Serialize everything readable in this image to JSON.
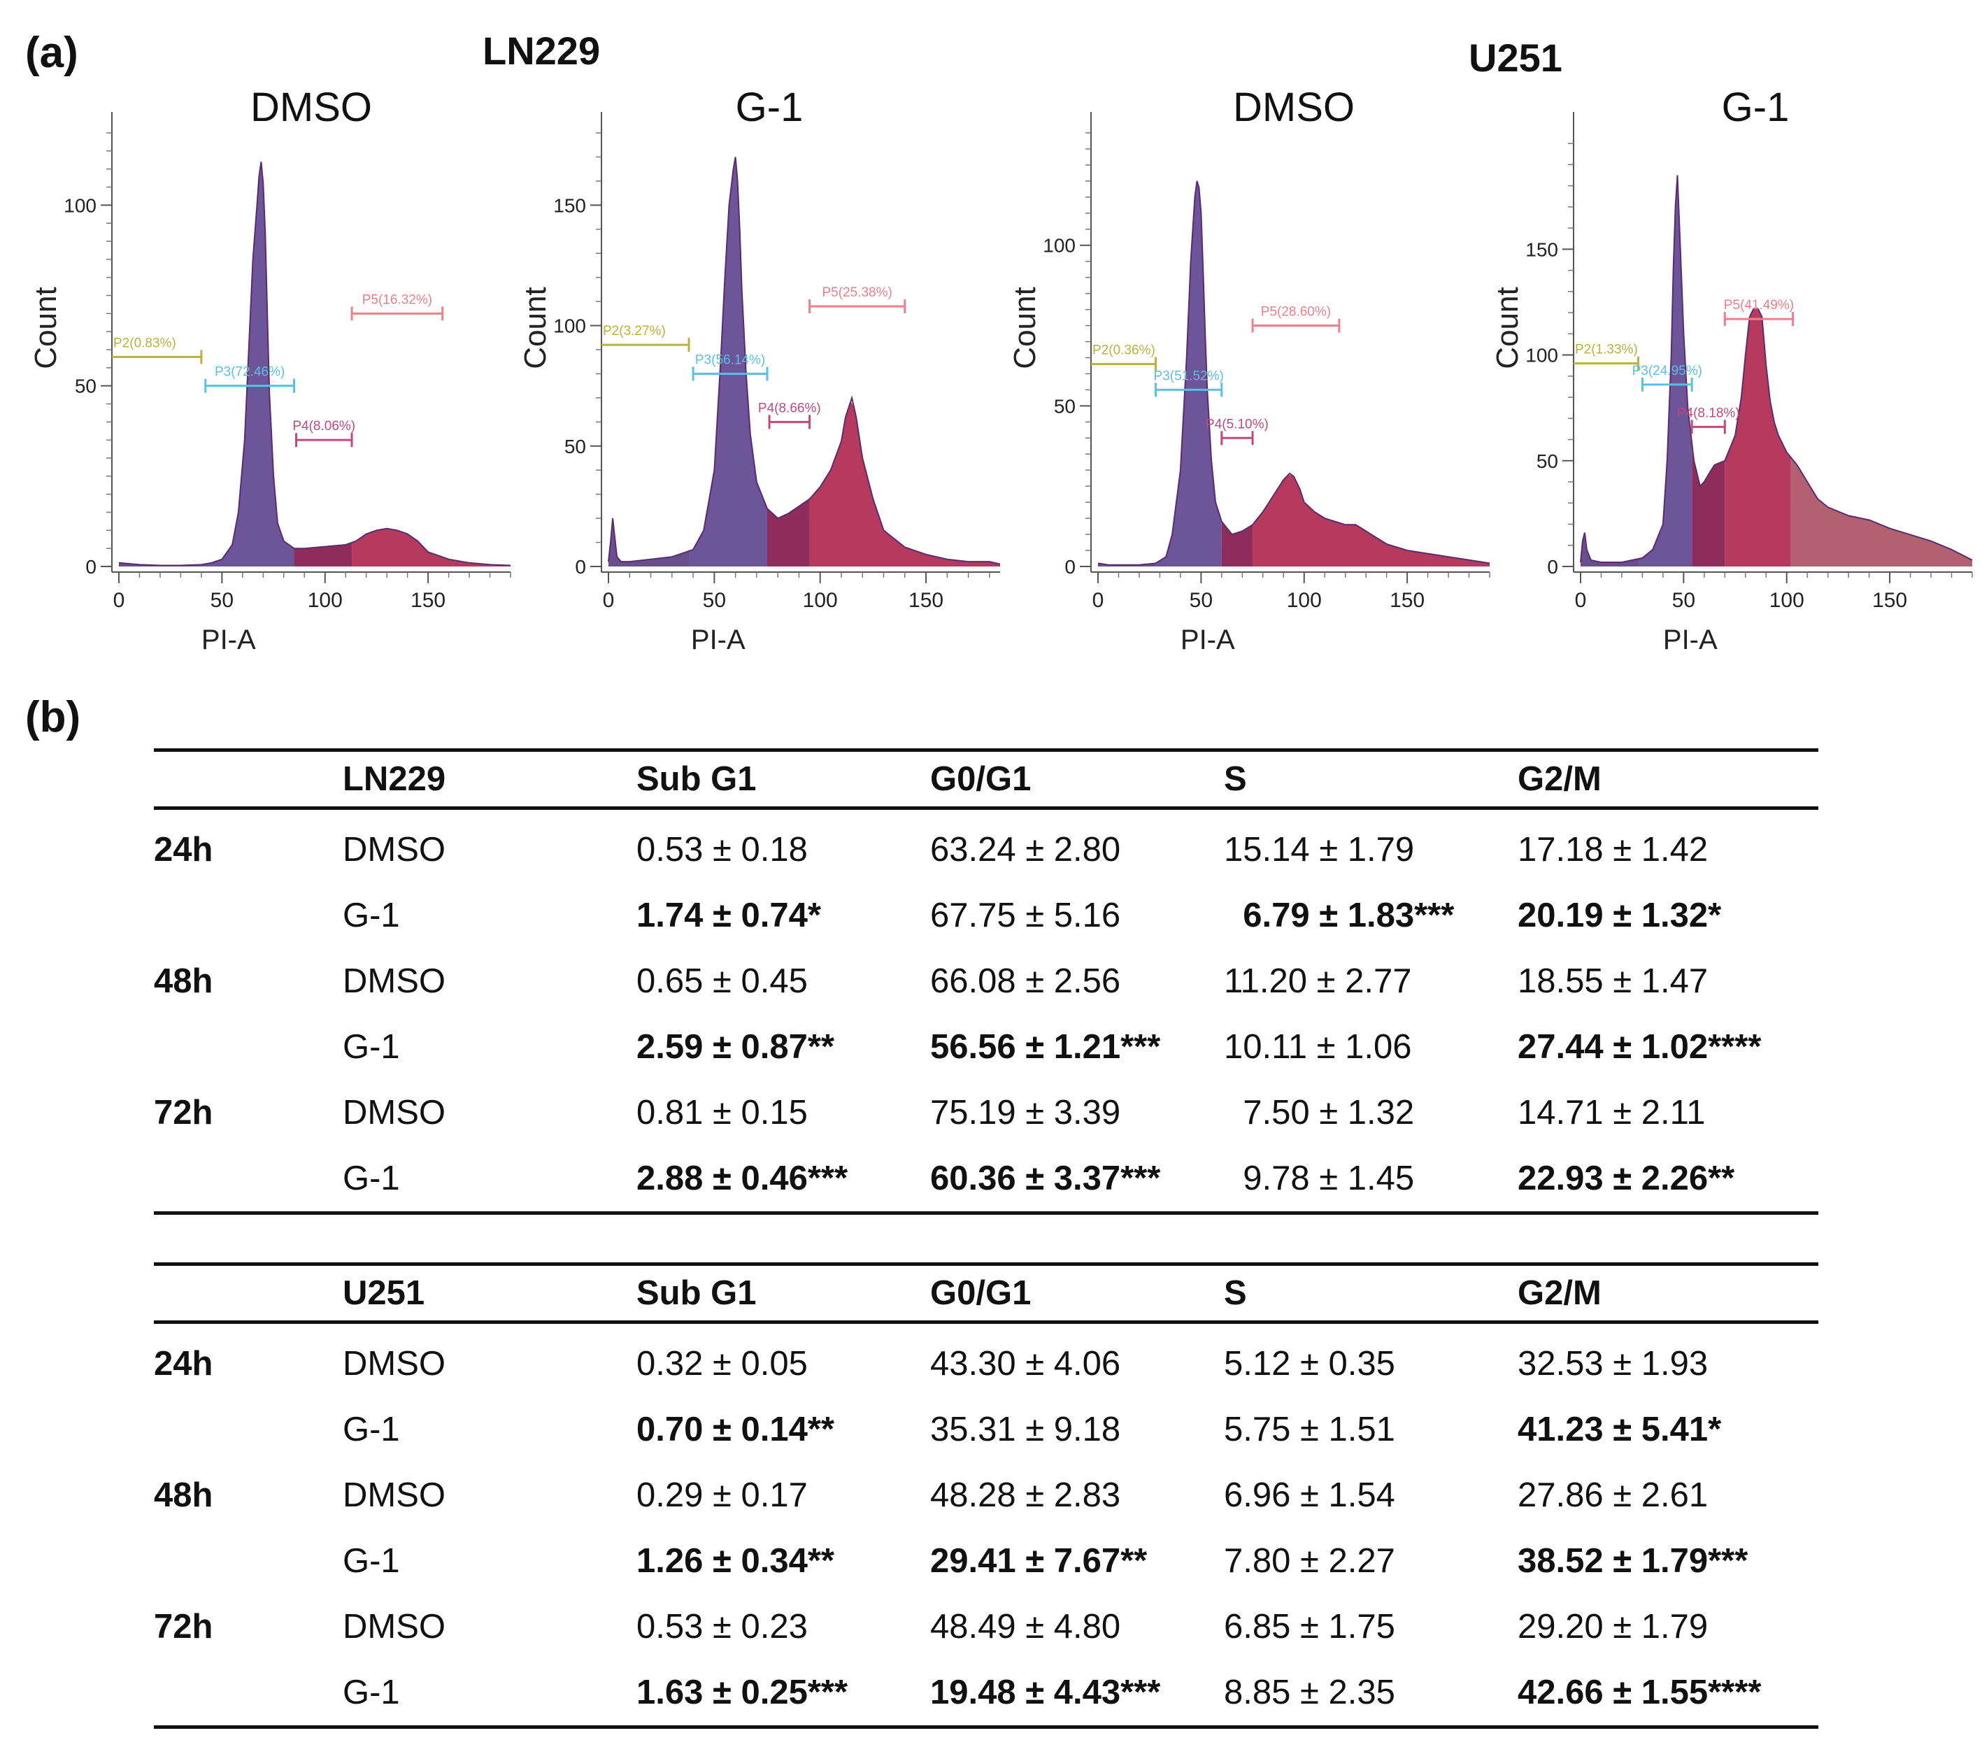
{
  "panel_a_label": "(a)",
  "panel_b_label": "(b)",
  "cell_lines": [
    "LN229",
    "U251"
  ],
  "chart_data": [
    {
      "type": "area",
      "cell_line": "LN229",
      "title": "DMSO",
      "xlabel": "PI-A",
      "ylabel": "Count",
      "xlim": [
        0,
        190
      ],
      "ylim": [
        0,
        120
      ],
      "xticks": [
        "0",
        "50",
        "100",
        "150"
      ],
      "yticks": [
        "0",
        "50",
        "100"
      ],
      "ytick_values": [
        0,
        50,
        100
      ],
      "x": [
        0,
        10,
        20,
        30,
        40,
        45,
        50,
        55,
        58,
        61,
        63,
        65,
        67,
        68,
        69,
        70,
        71,
        72,
        73,
        75,
        77,
        80,
        85,
        90,
        100,
        110,
        115,
        120,
        125,
        130,
        135,
        140,
        145,
        150,
        160,
        170,
        180,
        190
      ],
      "y": [
        1,
        0.5,
        0.3,
        0.3,
        0.5,
        1,
        2,
        6,
        15,
        35,
        60,
        85,
        100,
        108,
        112,
        106,
        92,
        70,
        48,
        25,
        12,
        7,
        5,
        5,
        5.5,
        6,
        7,
        9,
        10,
        10.5,
        10,
        9,
        7,
        4,
        2,
        1,
        0.5,
        0.3
      ],
      "gates": [
        {
          "name": "P2(0.83%)",
          "from": 0,
          "to": 40,
          "level": 58,
          "color": "#b9b23c",
          "fill_region": [
            0,
            40
          ],
          "fill_color": "#6a4f8f"
        },
        {
          "name": "P3(72.46%)",
          "from": 42,
          "to": 85,
          "level": 50,
          "color": "#5bc0e6",
          "fill_region": [
            40,
            85
          ],
          "fill_color": "#6c5598"
        },
        {
          "name": "P4(8.06%)",
          "from": 86,
          "to": 113,
          "level": 35,
          "color": "#c24a7a",
          "fill_region": [
            85,
            113
          ],
          "fill_color": "#8e2c5c"
        },
        {
          "name": "P5(16.32%)",
          "from": 113,
          "to": 157,
          "level": 70,
          "color": "#ee7f8b",
          "fill_region": [
            113,
            190
          ],
          "fill_color": "#b53a5e"
        }
      ]
    },
    {
      "type": "area",
      "cell_line": "LN229",
      "title": "G-1",
      "xlabel": "PI-A",
      "ylabel": "Count",
      "xlim": [
        0,
        185
      ],
      "ylim": [
        0,
        180
      ],
      "xticks": [
        "0",
        "50",
        "100",
        "150"
      ],
      "yticks": [
        "0",
        "50",
        "100",
        "150"
      ],
      "ytick_values": [
        0,
        50,
        100,
        150
      ],
      "x": [
        0,
        1,
        2,
        3,
        4,
        6,
        10,
        20,
        30,
        40,
        45,
        50,
        53,
        55,
        57,
        59,
        60,
        61,
        62,
        63,
        65,
        67,
        70,
        75,
        80,
        85,
        90,
        95,
        100,
        105,
        110,
        112,
        115,
        117,
        120,
        125,
        130,
        140,
        150,
        160,
        170,
        180,
        185
      ],
      "y": [
        2,
        10,
        20,
        12,
        4,
        2,
        2,
        3,
        4,
        7,
        15,
        40,
        85,
        120,
        150,
        165,
        170,
        160,
        140,
        115,
        80,
        55,
        35,
        24,
        20,
        22,
        25,
        28,
        33,
        40,
        52,
        62,
        70,
        62,
        45,
        28,
        15,
        8,
        5,
        3,
        2,
        2,
        1
      ],
      "gates": [
        {
          "name": "P2(3.27%)",
          "from": 0,
          "to": 38,
          "level": 92,
          "color": "#b9b23c",
          "fill_region": [
            0,
            38
          ],
          "fill_color": "#6a4f8f"
        },
        {
          "name": "P3(56.14%)",
          "from": 40,
          "to": 75,
          "level": 80,
          "color": "#5bc0e6",
          "fill_region": [
            38,
            75
          ],
          "fill_color": "#6c5598"
        },
        {
          "name": "P4(8.66%)",
          "from": 76,
          "to": 95,
          "level": 60,
          "color": "#c24a7a",
          "fill_region": [
            75,
            95
          ],
          "fill_color": "#8e2c5c"
        },
        {
          "name": "P5(25.38%)",
          "from": 95,
          "to": 140,
          "level": 108,
          "color": "#ee7f8b",
          "fill_region": [
            95,
            185
          ],
          "fill_color": "#b53a5e"
        }
      ]
    },
    {
      "type": "area",
      "cell_line": "U251",
      "title": "DMSO",
      "xlabel": "PI-A",
      "ylabel": "Count",
      "xlim": [
        0,
        190
      ],
      "ylim": [
        0,
        135
      ],
      "xticks": [
        "0",
        "50",
        "100",
        "150"
      ],
      "yticks": [
        "0",
        "50",
        "100"
      ],
      "ytick_values": [
        0,
        50,
        100
      ],
      "x": [
        0,
        5,
        10,
        20,
        28,
        33,
        36,
        40,
        43,
        45,
        47,
        48,
        49,
        50,
        51,
        52,
        53,
        55,
        57,
        60,
        65,
        70,
        75,
        80,
        85,
        90,
        93,
        95,
        98,
        100,
        105,
        110,
        115,
        120,
        125,
        130,
        135,
        140,
        150,
        160,
        170,
        180,
        190
      ],
      "y": [
        1,
        0.5,
        0.5,
        0.5,
        1,
        3,
        10,
        30,
        65,
        95,
        115,
        120,
        118,
        110,
        92,
        72,
        55,
        33,
        20,
        14,
        10,
        11,
        13,
        17,
        22,
        27,
        29,
        28,
        24,
        20,
        17,
        15,
        14,
        13,
        13,
        11,
        9,
        7,
        5,
        4,
        3,
        2,
        1
      ],
      "gates": [
        {
          "name": "P2(0.36%)",
          "from": 0,
          "to": 28,
          "level": 63,
          "color": "#b9b23c",
          "fill_region": [
            0,
            28
          ],
          "fill_color": "#6a4f8f"
        },
        {
          "name": "P3(51.52%)",
          "from": 28,
          "to": 60,
          "level": 55,
          "color": "#5bc0e6",
          "fill_region": [
            28,
            60
          ],
          "fill_color": "#6c5598"
        },
        {
          "name": "P4(5.10%)",
          "from": 60,
          "to": 75,
          "level": 40,
          "color": "#c24a7a",
          "fill_region": [
            60,
            75
          ],
          "fill_color": "#8e2c5c"
        },
        {
          "name": "P5(28.60%)",
          "from": 75,
          "to": 117,
          "level": 75,
          "color": "#ee7f8b",
          "fill_region": [
            75,
            190
          ],
          "fill_color": "#b53a5e"
        }
      ]
    },
    {
      "type": "area",
      "cell_line": "U251",
      "title": "G-1",
      "xlabel": "PI-A",
      "ylabel": "Count",
      "xlim": [
        0,
        190
      ],
      "ylim": [
        0,
        205
      ],
      "xticks": [
        "0",
        "50",
        "100",
        "150"
      ],
      "yticks": [
        "0",
        "50",
        "100",
        "150"
      ],
      "ytick_values": [
        0,
        50,
        100,
        150
      ],
      "x": [
        0,
        1,
        2,
        3,
        5,
        10,
        20,
        30,
        35,
        40,
        42,
        44,
        45,
        46,
        47,
        48,
        50,
        52,
        55,
        58,
        60,
        63,
        65,
        70,
        75,
        78,
        80,
        82,
        84,
        86,
        88,
        90,
        92,
        94,
        96,
        100,
        105,
        110,
        115,
        120,
        130,
        140,
        150,
        160,
        170,
        180,
        190
      ],
      "y": [
        2,
        12,
        16,
        8,
        3,
        2,
        2,
        4,
        8,
        20,
        50,
        100,
        140,
        170,
        185,
        160,
        110,
        75,
        50,
        38,
        40,
        45,
        48,
        50,
        62,
        80,
        100,
        118,
        122,
        122,
        118,
        95,
        78,
        68,
        62,
        54,
        48,
        40,
        32,
        28,
        24,
        22,
        18,
        15,
        12,
        8,
        3
      ],
      "gates": [
        {
          "name": "P2(1.33%)",
          "from": 0,
          "to": 28,
          "level": 96,
          "color": "#b9b23c",
          "fill_region": [
            0,
            28
          ],
          "fill_color": "#6a4f8f"
        },
        {
          "name": "P3(24.95%)",
          "from": 30,
          "to": 54,
          "level": 86,
          "color": "#5bc0e6",
          "fill_region": [
            28,
            54
          ],
          "fill_color": "#6c5598"
        },
        {
          "name": "P4(8.18%)",
          "from": 54,
          "to": 70,
          "level": 66,
          "color": "#c24a7a",
          "fill_region": [
            54,
            70
          ],
          "fill_color": "#8e2c5c"
        },
        {
          "name": "P5(41.49%)",
          "from": 70,
          "to": 103,
          "level": 117,
          "color": "#ee7f8b",
          "fill_region": [
            70,
            102
          ],
          "fill_color": "#b53a5e"
        },
        {
          "name": "",
          "from": 0,
          "to": 0,
          "level": 0,
          "color": "#ffffff",
          "fill_region": [
            102,
            190
          ],
          "fill_color": "#b36070"
        }
      ]
    }
  ],
  "tables": [
    {
      "header": [
        "",
        "LN229",
        "Sub G1",
        "G0/G1",
        "S",
        "G2/M"
      ],
      "rows": [
        {
          "time": "24h",
          "cond": "DMSO",
          "cells": [
            {
              "v": "0.53 ± 0.18",
              "b": false
            },
            {
              "v": "63.24 ± 2.80",
              "b": false
            },
            {
              "v": "15.14 ± 1.79",
              "b": false
            },
            {
              "v": "17.18 ± 1.42",
              "b": false
            }
          ]
        },
        {
          "time": "",
          "cond": "G-1",
          "cells": [
            {
              "v": "1.74 ± 0.74*",
              "b": true
            },
            {
              "v": "67.75 ± 5.16",
              "b": false
            },
            {
              "v": "  6.79 ± 1.83***",
              "b": true
            },
            {
              "v": "20.19 ± 1.32*",
              "b": true
            }
          ]
        },
        {
          "time": "48h",
          "cond": "DMSO",
          "cells": [
            {
              "v": "0.65 ± 0.45",
              "b": false
            },
            {
              "v": "66.08 ± 2.56",
              "b": false
            },
            {
              "v": "11.20 ± 2.77",
              "b": false
            },
            {
              "v": "18.55 ± 1.47",
              "b": false
            }
          ]
        },
        {
          "time": "",
          "cond": "G-1",
          "cells": [
            {
              "v": "2.59 ± 0.87**",
              "b": true
            },
            {
              "v": "56.56 ± 1.21***",
              "b": true
            },
            {
              "v": "10.11 ± 1.06",
              "b": false
            },
            {
              "v": "27.44 ± 1.02****",
              "b": true
            }
          ]
        },
        {
          "time": "72h",
          "cond": "DMSO",
          "cells": [
            {
              "v": "0.81 ± 0.15",
              "b": false
            },
            {
              "v": "75.19 ± 3.39",
              "b": false
            },
            {
              "v": "  7.50 ± 1.32",
              "b": false
            },
            {
              "v": "14.71 ± 2.11",
              "b": false
            }
          ]
        },
        {
          "time": "",
          "cond": "G-1",
          "cells": [
            {
              "v": "2.88 ± 0.46***",
              "b": true
            },
            {
              "v": "60.36 ± 3.37***",
              "b": true
            },
            {
              "v": "  9.78 ± 1.45",
              "b": false
            },
            {
              "v": "22.93 ± 2.26**",
              "b": true
            }
          ]
        }
      ]
    },
    {
      "header": [
        "",
        "U251",
        "Sub G1",
        "G0/G1",
        "S",
        "G2/M"
      ],
      "rows": [
        {
          "time": "24h",
          "cond": "DMSO",
          "cells": [
            {
              "v": "0.32 ± 0.05",
              "b": false
            },
            {
              "v": "43.30 ± 4.06",
              "b": false
            },
            {
              "v": "5.12 ± 0.35",
              "b": false
            },
            {
              "v": "32.53 ± 1.93",
              "b": false
            }
          ]
        },
        {
          "time": "",
          "cond": "G-1",
          "cells": [
            {
              "v": "0.70 ± 0.14**",
              "b": true
            },
            {
              "v": "35.31 ± 9.18",
              "b": false
            },
            {
              "v": "5.75 ± 1.51",
              "b": false
            },
            {
              "v": "41.23 ± 5.41*",
              "b": true
            }
          ]
        },
        {
          "time": "48h",
          "cond": "DMSO",
          "cells": [
            {
              "v": "0.29 ± 0.17",
              "b": false
            },
            {
              "v": "48.28 ± 2.83",
              "b": false
            },
            {
              "v": "6.96 ± 1.54",
              "b": false
            },
            {
              "v": "27.86 ± 2.61",
              "b": false
            }
          ]
        },
        {
          "time": "",
          "cond": "G-1",
          "cells": [
            {
              "v": "1.26 ± 0.34**",
              "b": true
            },
            {
              "v": "29.41 ± 7.67**",
              "b": true
            },
            {
              "v": "7.80 ± 2.27",
              "b": false
            },
            {
              "v": "38.52 ± 1.79***",
              "b": true
            }
          ]
        },
        {
          "time": "72h",
          "cond": "DMSO",
          "cells": [
            {
              "v": "0.53 ± 0.23",
              "b": false
            },
            {
              "v": "48.49 ± 4.80",
              "b": false
            },
            {
              "v": "6.85 ± 1.75",
              "b": false
            },
            {
              "v": "29.20 ± 1.79",
              "b": false
            }
          ]
        },
        {
          "time": "",
          "cond": "G-1",
          "cells": [
            {
              "v": "1.63 ± 0.25***",
              "b": true
            },
            {
              "v": "19.48 ± 4.43***",
              "b": true
            },
            {
              "v": "8.85 ± 2.35",
              "b": false
            },
            {
              "v": "42.66 ± 1.55****",
              "b": true
            }
          ]
        }
      ]
    }
  ]
}
